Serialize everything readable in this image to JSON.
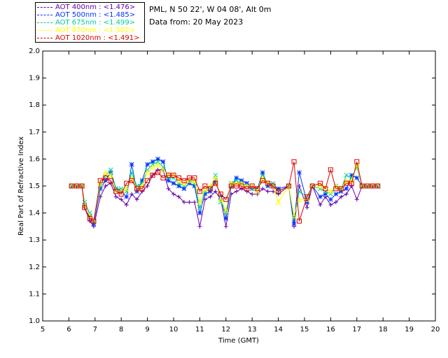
{
  "header": {
    "site": "PML, N 50 22', W 04 08', Alt 0m",
    "date": "Data from: 20 May 2023"
  },
  "chart_data": {
    "type": "line",
    "xlabel": "Time (GMT)",
    "ylabel": "Real Part of Refractive Index",
    "xlim": [
      5,
      20
    ],
    "ylim": [
      1.0,
      2.0
    ],
    "xticks": [
      "5",
      "6",
      "7",
      "8",
      "9",
      "10",
      "11",
      "12",
      "13",
      "14",
      "15",
      "16",
      "17",
      "18",
      "19",
      "20"
    ],
    "yticks": [
      "1.0",
      "1.1",
      "1.2",
      "1.3",
      "1.4",
      "1.5",
      "1.6",
      "1.7",
      "1.8",
      "1.9",
      "2.0"
    ],
    "legend_position": "top-left, outside plot",
    "series": [
      {
        "name": "AOT  400nm : <1.476>",
        "color": "#6600aa",
        "marker": "+",
        "x": [
          6.1,
          6.3,
          6.5,
          6.6,
          6.8,
          6.95,
          7.2,
          7.4,
          7.6,
          7.8,
          8.0,
          8.2,
          8.4,
          8.6,
          8.8,
          9.0,
          9.2,
          9.4,
          9.6,
          9.8,
          10.0,
          10.2,
          10.4,
          10.6,
          10.8,
          11.0,
          11.2,
          11.4,
          11.6,
          11.8,
          12.0,
          12.2,
          12.4,
          12.6,
          12.8,
          13.0,
          13.2,
          13.4,
          13.6,
          13.8,
          14.0,
          14.4,
          14.6,
          14.8,
          15.1,
          15.3,
          15.6,
          15.8,
          16.0,
          16.2,
          16.4,
          16.6,
          16.8,
          17.0,
          17.2,
          17.4,
          17.6,
          17.8
        ],
        "y": [
          1.5,
          1.5,
          1.5,
          1.42,
          1.37,
          1.35,
          1.46,
          1.5,
          1.51,
          1.46,
          1.45,
          1.43,
          1.47,
          1.45,
          1.48,
          1.5,
          1.54,
          1.56,
          1.56,
          1.49,
          1.47,
          1.46,
          1.44,
          1.44,
          1.44,
          1.35,
          1.45,
          1.46,
          1.48,
          1.45,
          1.35,
          1.47,
          1.48,
          1.49,
          1.48,
          1.47,
          1.47,
          1.49,
          1.48,
          1.48,
          1.47,
          1.5,
          1.35,
          1.5,
          1.42,
          1.5,
          1.43,
          1.46,
          1.43,
          1.44,
          1.46,
          1.47,
          1.5,
          1.45,
          1.5,
          1.5,
          1.5,
          1.5
        ]
      },
      {
        "name": "AOT  500nm : <1.485>",
        "color": "#0033ff",
        "marker": "*",
        "x": [
          6.1,
          6.3,
          6.5,
          6.6,
          6.8,
          6.95,
          7.2,
          7.4,
          7.6,
          7.8,
          8.0,
          8.2,
          8.4,
          8.6,
          8.8,
          9.0,
          9.2,
          9.4,
          9.6,
          9.8,
          10.0,
          10.2,
          10.4,
          10.6,
          10.8,
          11.0,
          11.2,
          11.4,
          11.6,
          11.8,
          12.0,
          12.2,
          12.4,
          12.6,
          12.8,
          13.0,
          13.2,
          13.4,
          13.6,
          13.8,
          14.0,
          14.4,
          14.6,
          14.8,
          15.1,
          15.3,
          15.6,
          15.8,
          16.0,
          16.2,
          16.4,
          16.6,
          16.8,
          17.0,
          17.2,
          17.4,
          17.6,
          17.8
        ],
        "y": [
          1.5,
          1.5,
          1.5,
          1.43,
          1.39,
          1.36,
          1.49,
          1.52,
          1.55,
          1.49,
          1.48,
          1.46,
          1.58,
          1.48,
          1.52,
          1.58,
          1.59,
          1.6,
          1.59,
          1.52,
          1.51,
          1.5,
          1.49,
          1.51,
          1.5,
          1.4,
          1.47,
          1.48,
          1.52,
          1.46,
          1.38,
          1.5,
          1.53,
          1.52,
          1.51,
          1.49,
          1.49,
          1.55,
          1.5,
          1.5,
          1.49,
          1.5,
          1.36,
          1.55,
          1.44,
          1.5,
          1.46,
          1.47,
          1.45,
          1.47,
          1.48,
          1.49,
          1.54,
          1.53,
          1.5,
          1.5,
          1.5,
          1.5
        ]
      },
      {
        "name": "AOT  675nm : <1.499>",
        "color": "#00cc99",
        "marker": "x",
        "x": [
          6.1,
          6.3,
          6.5,
          6.6,
          6.8,
          6.95,
          7.2,
          7.4,
          7.6,
          7.8,
          8.0,
          8.2,
          8.4,
          8.6,
          8.8,
          9.0,
          9.2,
          9.4,
          9.6,
          9.8,
          10.0,
          10.2,
          10.4,
          10.6,
          10.8,
          11.0,
          11.2,
          11.4,
          11.6,
          11.8,
          12.0,
          12.2,
          12.4,
          12.6,
          12.8,
          13.0,
          13.2,
          13.4,
          13.6,
          13.8,
          14.0,
          14.4,
          14.6,
          14.8,
          15.1,
          15.3,
          15.6,
          15.8,
          16.0,
          16.2,
          16.4,
          16.6,
          16.8,
          17.0,
          17.2,
          17.4,
          17.6,
          17.8
        ],
        "y": [
          1.5,
          1.5,
          1.5,
          1.44,
          1.4,
          1.37,
          1.5,
          1.54,
          1.56,
          1.49,
          1.49,
          1.48,
          1.55,
          1.5,
          1.51,
          1.56,
          1.58,
          1.59,
          1.57,
          1.53,
          1.53,
          1.51,
          1.5,
          1.52,
          1.51,
          1.42,
          1.48,
          1.49,
          1.54,
          1.44,
          1.4,
          1.51,
          1.52,
          1.51,
          1.5,
          1.49,
          1.49,
          1.54,
          1.51,
          1.51,
          1.48,
          1.5,
          1.38,
          1.48,
          1.46,
          1.5,
          1.49,
          1.48,
          1.47,
          1.5,
          1.49,
          1.54,
          1.53,
          1.57,
          1.5,
          1.5,
          1.5,
          1.5
        ]
      },
      {
        "name": "AOT  870nm : <1.502>",
        "color": "#ffff00",
        "marker": "^",
        "x": [
          6.1,
          6.3,
          6.5,
          6.6,
          6.8,
          6.95,
          7.2,
          7.4,
          7.6,
          7.8,
          8.0,
          8.2,
          8.4,
          8.6,
          8.8,
          9.0,
          9.2,
          9.4,
          9.6,
          9.8,
          10.0,
          10.2,
          10.4,
          10.6,
          10.8,
          11.0,
          11.2,
          11.4,
          11.6,
          11.8,
          12.0,
          12.2,
          12.4,
          12.6,
          12.8,
          13.0,
          13.2,
          13.4,
          13.6,
          13.8,
          14.0,
          14.4,
          14.6,
          14.8,
          15.1,
          15.3,
          15.6,
          15.8,
          16.0,
          16.2,
          16.4,
          16.6,
          16.8,
          17.0,
          17.2,
          17.4,
          17.6,
          17.8
        ],
        "y": [
          1.5,
          1.5,
          1.5,
          1.43,
          1.39,
          1.37,
          1.51,
          1.55,
          1.54,
          1.48,
          1.48,
          1.49,
          1.53,
          1.49,
          1.5,
          1.55,
          1.57,
          1.58,
          1.56,
          1.54,
          1.54,
          1.52,
          1.51,
          1.52,
          1.52,
          1.44,
          1.49,
          1.5,
          1.53,
          1.45,
          1.41,
          1.51,
          1.51,
          1.51,
          1.5,
          1.5,
          1.48,
          1.53,
          1.51,
          1.5,
          1.44,
          1.5,
          1.39,
          1.45,
          1.45,
          1.5,
          1.5,
          1.49,
          1.48,
          1.5,
          1.49,
          1.52,
          1.52,
          1.58,
          1.5,
          1.5,
          1.5,
          1.5
        ]
      },
      {
        "name": "AOT 1020nm : <1.491>",
        "color": "#dd0000",
        "marker": "square",
        "x": [
          6.1,
          6.3,
          6.5,
          6.6,
          6.8,
          6.95,
          7.2,
          7.4,
          7.6,
          7.8,
          8.0,
          8.2,
          8.4,
          8.6,
          8.8,
          9.0,
          9.2,
          9.4,
          9.6,
          9.8,
          10.0,
          10.2,
          10.4,
          10.6,
          10.8,
          11.0,
          11.2,
          11.4,
          11.6,
          11.8,
          12.0,
          12.2,
          12.4,
          12.6,
          12.8,
          13.0,
          13.2,
          13.4,
          13.6,
          13.8,
          14.0,
          14.4,
          14.6,
          14.8,
          15.1,
          15.3,
          15.6,
          15.8,
          16.0,
          16.2,
          16.4,
          16.6,
          16.8,
          17.0,
          17.2,
          17.4,
          17.6,
          17.8
        ],
        "y": [
          1.5,
          1.5,
          1.5,
          1.42,
          1.38,
          1.37,
          1.52,
          1.53,
          1.52,
          1.48,
          1.47,
          1.51,
          1.52,
          1.49,
          1.49,
          1.52,
          1.54,
          1.55,
          1.53,
          1.54,
          1.54,
          1.53,
          1.52,
          1.53,
          1.53,
          1.48,
          1.5,
          1.49,
          1.51,
          1.47,
          1.45,
          1.5,
          1.5,
          1.5,
          1.49,
          1.5,
          1.49,
          1.52,
          1.51,
          1.5,
          1.48,
          1.5,
          1.59,
          1.37,
          1.46,
          1.5,
          1.51,
          1.49,
          1.56,
          1.49,
          1.49,
          1.51,
          1.51,
          1.59,
          1.5,
          1.5,
          1.5,
          1.5
        ]
      }
    ]
  }
}
